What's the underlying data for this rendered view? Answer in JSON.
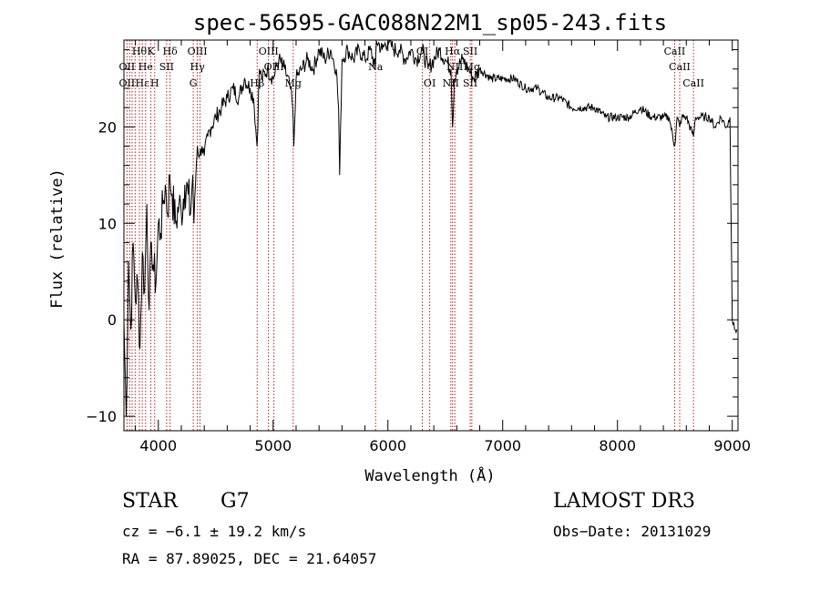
{
  "chart_data": {
    "type": "line",
    "title": "spec-56595-GAC088N22M1_sp05-243.fits",
    "xlabel": "Wavelength (Å)",
    "ylabel": "Flux (relative)",
    "xlim": [
      3700,
      9050
    ],
    "ylim": [
      -11.5,
      29
    ],
    "xticks": [
      4000,
      5000,
      6000,
      7000,
      8000,
      9000
    ],
    "yticks": [
      -10,
      0,
      10,
      20
    ],
    "series": [
      {
        "name": "flux",
        "x": [
          3700,
          3720,
          3740,
          3760,
          3780,
          3800,
          3820,
          3840,
          3860,
          3880,
          3900,
          3920,
          3940,
          3960,
          3980,
          4000,
          4020,
          4040,
          4060,
          4080,
          4100,
          4120,
          4150,
          4180,
          4200,
          4230,
          4260,
          4280,
          4300,
          4310,
          4330,
          4340,
          4360,
          4380,
          4400,
          4430,
          4460,
          4500,
          4550,
          4600,
          4650,
          4700,
          4750,
          4800,
          4830,
          4860,
          4880,
          4900,
          4950,
          5000,
          5050,
          5100,
          5150,
          5170,
          5180,
          5200,
          5250,
          5300,
          5350,
          5400,
          5450,
          5500,
          5550,
          5570,
          5580,
          5600,
          5650,
          5700,
          5750,
          5800,
          5850,
          5890,
          5900,
          5950,
          6000,
          6050,
          6100,
          6150,
          6200,
          6250,
          6300,
          6350,
          6400,
          6450,
          6500,
          6550,
          6563,
          6580,
          6600,
          6650,
          6700,
          6750,
          6800,
          6900,
          7000,
          7100,
          7200,
          7300,
          7400,
          7500,
          7600,
          7700,
          7800,
          7900,
          8000,
          8100,
          8200,
          8300,
          8400,
          8450,
          8498,
          8520,
          8542,
          8560,
          8600,
          8662,
          8680,
          8700,
          8750,
          8800,
          8850,
          8900,
          8950,
          8980,
          9000,
          9020,
          9040
        ],
        "values": [
          0,
          -10,
          6,
          -1,
          8,
          2,
          4,
          -3,
          7,
          3,
          12,
          1,
          8,
          5,
          4,
          10,
          9,
          12,
          14,
          11,
          15,
          13,
          10,
          12,
          11,
          14,
          13,
          11,
          15,
          10,
          16,
          18,
          17,
          18,
          17,
          19,
          20,
          21,
          22,
          23,
          24,
          23,
          25,
          24,
          23,
          18,
          26,
          25,
          26,
          25,
          27,
          26,
          24,
          22,
          18,
          25,
          26,
          27,
          26,
          28,
          27,
          28,
          26,
          22,
          15,
          27,
          28,
          27,
          28,
          27,
          28,
          26,
          29,
          28,
          29,
          28,
          28,
          27,
          28,
          27,
          28,
          26,
          27,
          28,
          27,
          26,
          20,
          25,
          26,
          27,
          26,
          25,
          26,
          25,
          25,
          25,
          24,
          24,
          23,
          23,
          22,
          22,
          22,
          21,
          21,
          21,
          22,
          21,
          21,
          21,
          18,
          21,
          20,
          21,
          21,
          19,
          21,
          21,
          21,
          21,
          20,
          21,
          20,
          21,
          0,
          -1,
          -1
        ]
      }
    ],
    "spectral_lines_top": [
      {
        "x": 3835,
        "label": "Hθ",
        "row": 0
      },
      {
        "x": 3935,
        "label": "K",
        "row": 0
      },
      {
        "x": 4102,
        "label": "Hδ",
        "row": 0
      },
      {
        "x": 4340,
        "label": "OIII",
        "row": 0
      },
      {
        "x": 4960,
        "label": "OIII",
        "row": 0
      },
      {
        "x": 6300,
        "label": "OI",
        "row": 0
      },
      {
        "x": 6563,
        "label": "Hα",
        "row": 0
      },
      {
        "x": 6717,
        "label": "SII",
        "row": 0
      },
      {
        "x": 8498,
        "label": "CaII",
        "row": 0
      },
      {
        "x": 3727,
        "label": "OII",
        "row": 1
      },
      {
        "x": 3889,
        "label": "He",
        "row": 1
      },
      {
        "x": 4072,
        "label": "SII",
        "row": 1
      },
      {
        "x": 4340,
        "label": "Hγ",
        "row": 1
      },
      {
        "x": 5007,
        "label": "OIII",
        "row": 1
      },
      {
        "x": 5893,
        "label": "Na",
        "row": 1
      },
      {
        "x": 6583,
        "label": "NII",
        "row": 1
      },
      {
        "x": 6731,
        "label": "Mg",
        "row": 1
      },
      {
        "x": 8542,
        "label": "CaII",
        "row": 1
      },
      {
        "x": 3727,
        "label": "OII",
        "row": 2
      },
      {
        "x": 3860,
        "label": "Hε",
        "row": 2
      },
      {
        "x": 3968,
        "label": "H",
        "row": 2
      },
      {
        "x": 4304,
        "label": "G",
        "row": 2
      },
      {
        "x": 4861,
        "label": "Hβ",
        "row": 2
      },
      {
        "x": 5175,
        "label": "Mg",
        "row": 2
      },
      {
        "x": 6364,
        "label": "OI",
        "row": 2
      },
      {
        "x": 6548,
        "label": "NII",
        "row": 2
      },
      {
        "x": 6717,
        "label": "SII",
        "row": 2
      },
      {
        "x": 8662,
        "label": "CaII",
        "row": 2
      }
    ],
    "line_positions": [
      3727,
      3750,
      3771,
      3798,
      3835,
      3860,
      3889,
      3935,
      3968,
      4072,
      4102,
      4304,
      4340,
      4363,
      4861,
      4959,
      5007,
      5175,
      5893,
      6300,
      6364,
      6548,
      6563,
      6583,
      6717,
      6731,
      8498,
      8542,
      8662
    ],
    "colors": {
      "line_markers": "#b22222",
      "spectrum": "#000000"
    }
  },
  "info": {
    "class_label": "STAR",
    "subclass": "G7",
    "survey": "LAMOST DR3",
    "cz": "cz = −6.1 ± 19.2 km/s",
    "obs_date": "Obs−Date: 20131029",
    "coords": "RA =  87.89025, DEC =  21.64057"
  }
}
